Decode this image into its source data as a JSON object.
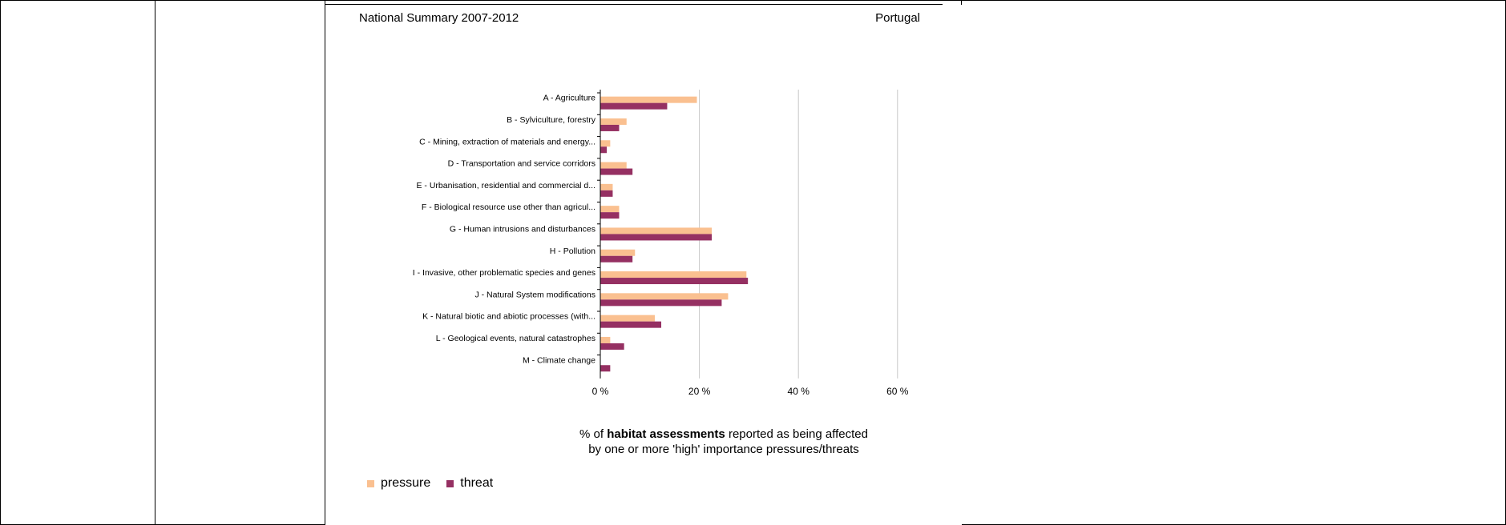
{
  "header": {
    "left": "National Summary 2007-2012",
    "right": "Portugal"
  },
  "caption": {
    "prefix": "% of ",
    "bold": "habitat assessments",
    "suffix": " reported as being affected",
    "line2": "by one or more 'high' importance pressures/threats"
  },
  "legend": [
    {
      "label": "pressure",
      "color": "#FAC090"
    },
    {
      "label": "threat",
      "color": "#953062"
    }
  ],
  "chart_data": {
    "type": "bar",
    "orientation": "horizontal",
    "categories": [
      "A - Agriculture",
      "B - Sylviculture, forestry",
      "C - Mining, extraction of materials and energy...",
      "D - Transportation and service corridors",
      "E - Urbanisation, residential and commercial d...",
      "F - Biological resource use other than agricul...",
      "G - Human intrusions and disturbances",
      "H - Pollution",
      "I - Invasive, other problematic species and genes",
      "J - Natural System modifications",
      "K - Natural biotic and abiotic processes (with...",
      "L - Geological events, natural catastrophes",
      "M - Climate change"
    ],
    "series": [
      {
        "name": "pressure",
        "color": "#FAC090",
        "values": [
          19.5,
          5.3,
          2.0,
          5.3,
          2.5,
          3.8,
          22.5,
          7.0,
          29.5,
          25.8,
          11.0,
          2.0,
          0
        ]
      },
      {
        "name": "threat",
        "color": "#953062",
        "values": [
          13.5,
          3.8,
          1.3,
          6.5,
          2.5,
          3.8,
          22.5,
          6.5,
          29.8,
          24.5,
          12.3,
          4.8,
          2.0
        ]
      }
    ],
    "xticks": [
      "0 %",
      "20 %",
      "40 %",
      "60 %"
    ],
    "xlim": [
      0,
      60
    ],
    "grid": true,
    "legend_position": "bottom-left"
  }
}
